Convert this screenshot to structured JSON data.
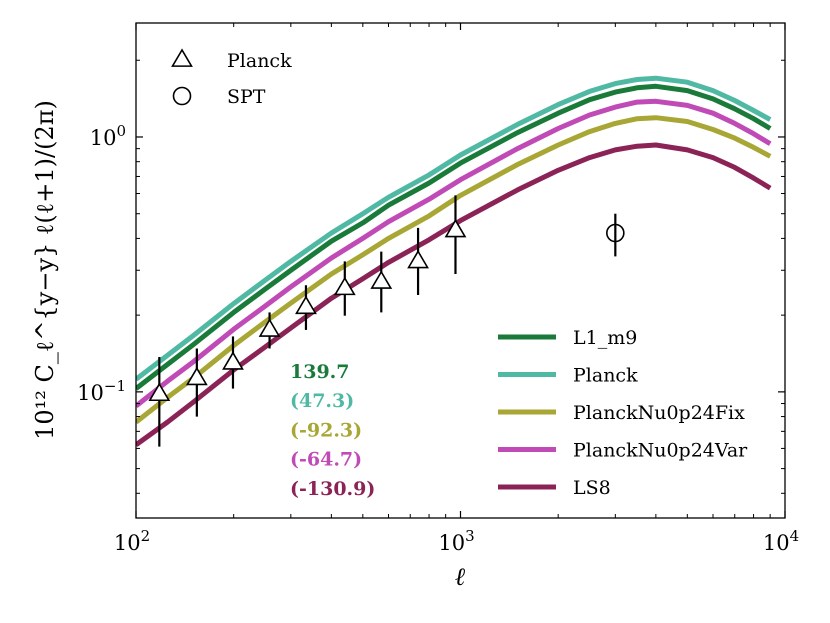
{
  "chart_data": {
    "type": "line",
    "x_scale": "log",
    "y_scale": "log",
    "xlim": [
      100,
      10000
    ],
    "ylim": [
      0.032,
      2.8
    ],
    "xlabel": "ℓ",
    "ylabel": "10¹² C_ℓ^{y−y} ℓ(ℓ+1)/(2π)",
    "x_ticks": [
      {
        "value": 100,
        "base": "10",
        "exp": "2"
      },
      {
        "value": 1000,
        "base": "10",
        "exp": "3"
      },
      {
        "value": 10000,
        "base": "10",
        "exp": "4"
      }
    ],
    "y_ticks": [
      {
        "value": 0.1,
        "base": "10",
        "exp": "−1"
      },
      {
        "value": 1,
        "base": "10",
        "exp": "0"
      }
    ],
    "grid": false,
    "x": [
      100,
      125,
      150,
      200,
      250,
      300,
      400,
      500,
      600,
      800,
      1000,
      1500,
      2000,
      2500,
      3000,
      3500,
      4000,
      5000,
      6000,
      7000,
      8000,
      9000
    ],
    "series": [
      {
        "name": "L1_m9",
        "color": "#1a7a3a",
        "values": [
          0.103,
          0.128,
          0.153,
          0.205,
          0.253,
          0.3,
          0.39,
          0.46,
          0.54,
          0.66,
          0.79,
          1.04,
          1.24,
          1.4,
          1.5,
          1.56,
          1.58,
          1.52,
          1.41,
          1.29,
          1.18,
          1.08
        ]
      },
      {
        "name": "Planck",
        "color": "#4fb9a4",
        "values": [
          0.112,
          0.139,
          0.166,
          0.222,
          0.274,
          0.325,
          0.42,
          0.5,
          0.58,
          0.71,
          0.85,
          1.12,
          1.34,
          1.51,
          1.62,
          1.68,
          1.7,
          1.64,
          1.52,
          1.39,
          1.27,
          1.17
        ]
      },
      {
        "name": "PlanckNu0p24Fix",
        "color": "#a8a634",
        "values": [
          0.076,
          0.095,
          0.113,
          0.152,
          0.188,
          0.223,
          0.29,
          0.345,
          0.4,
          0.49,
          0.59,
          0.78,
          0.93,
          1.05,
          1.13,
          1.18,
          1.19,
          1.15,
          1.07,
          0.99,
          0.91,
          0.84
        ]
      },
      {
        "name": "PlanckNu0p24Var",
        "color": "#c04ab6",
        "values": [
          0.088,
          0.11,
          0.131,
          0.176,
          0.217,
          0.258,
          0.335,
          0.4,
          0.465,
          0.57,
          0.68,
          0.9,
          1.08,
          1.22,
          1.31,
          1.37,
          1.38,
          1.33,
          1.24,
          1.13,
          1.03,
          0.94
        ]
      },
      {
        "name": "LS8",
        "color": "#8b2357",
        "values": [
          0.062,
          0.076,
          0.091,
          0.122,
          0.15,
          0.178,
          0.233,
          0.278,
          0.322,
          0.395,
          0.47,
          0.62,
          0.74,
          0.83,
          0.89,
          0.92,
          0.93,
          0.89,
          0.83,
          0.76,
          0.69,
          0.63
        ]
      }
    ],
    "points": [
      {
        "name": "Planck",
        "marker": "triangle",
        "data": [
          {
            "x": 118,
            "y": 0.098,
            "ylo": 0.061,
            "yhi": 0.137
          },
          {
            "x": 154,
            "y": 0.113,
            "ylo": 0.08,
            "yhi": 0.148
          },
          {
            "x": 199,
            "y": 0.13,
            "ylo": 0.103,
            "yhi": 0.165
          },
          {
            "x": 258,
            "y": 0.175,
            "ylo": 0.148,
            "yhi": 0.205
          },
          {
            "x": 334,
            "y": 0.215,
            "ylo": 0.175,
            "yhi": 0.262
          },
          {
            "x": 440,
            "y": 0.255,
            "ylo": 0.199,
            "yhi": 0.325
          },
          {
            "x": 570,
            "y": 0.27,
            "ylo": 0.205,
            "yhi": 0.355
          },
          {
            "x": 740,
            "y": 0.325,
            "ylo": 0.24,
            "yhi": 0.44
          },
          {
            "x": 965,
            "y": 0.43,
            "ylo": 0.29,
            "yhi": 0.59
          }
        ]
      },
      {
        "name": "SPT",
        "marker": "circle",
        "data": [
          {
            "x": 3000,
            "y": 0.42,
            "ylo": 0.34,
            "yhi": 0.5
          }
        ]
      }
    ],
    "stat_labels": [
      {
        "text": "139.7",
        "color": "#1a7a3a"
      },
      {
        "text": "(47.3)",
        "color": "#4fb9a4"
      },
      {
        "text": "(-92.3)",
        "color": "#a8a634"
      },
      {
        "text": "(-64.7)",
        "color": "#c04ab6"
      },
      {
        "text": "(-130.9)",
        "color": "#8b2357"
      }
    ],
    "legend_markers": {
      "placement": "top-left",
      "entries": [
        {
          "name": "Planck",
          "marker": "triangle"
        },
        {
          "name": "SPT",
          "marker": "circle"
        }
      ]
    },
    "legend_lines": {
      "placement": "lower-right",
      "entries": [
        "L1_m9",
        "Planck",
        "PlanckNu0p24Fix",
        "PlanckNu0p24Var",
        "LS8"
      ]
    }
  }
}
